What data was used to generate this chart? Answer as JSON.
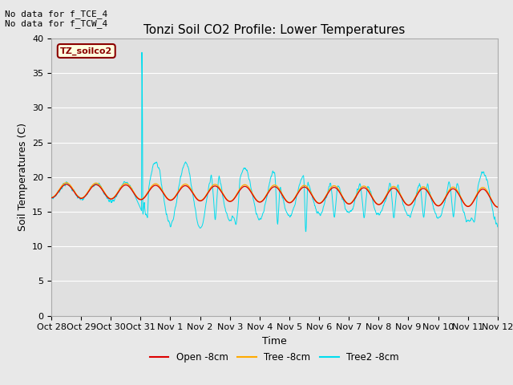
{
  "title": "Tonzi Soil CO2 Profile: Lower Temperatures",
  "xlabel": "Time",
  "ylabel": "Soil Temperatures (C)",
  "annotations": [
    "No data for f_TCE_4",
    "No data for f_TCW_4"
  ],
  "legend_label": "TZ_soilco2",
  "series_labels": [
    "Open -8cm",
    "Tree -8cm",
    "Tree2 -8cm"
  ],
  "series_colors": [
    "#dd0000",
    "#ffaa00",
    "#00ddee"
  ],
  "ylim": [
    0,
    40
  ],
  "n_days": 15,
  "x_tick_labels": [
    "Oct 28",
    "Oct 29",
    "Oct 30",
    "Oct 31",
    "Nov 1",
    "Nov 2",
    "Nov 3",
    "Nov 4",
    "Nov 5",
    "Nov 6",
    "Nov 7",
    "Nov 8",
    "Nov 9",
    "Nov 10",
    "Nov 11",
    "Nov 12"
  ],
  "fig_bg_color": "#e8e8e8",
  "plot_bg_color": "#e0e0e0",
  "title_fontsize": 11,
  "axis_label_fontsize": 9,
  "tick_fontsize": 8,
  "grid_color": "#ffffff",
  "annotation_fontsize": 8
}
